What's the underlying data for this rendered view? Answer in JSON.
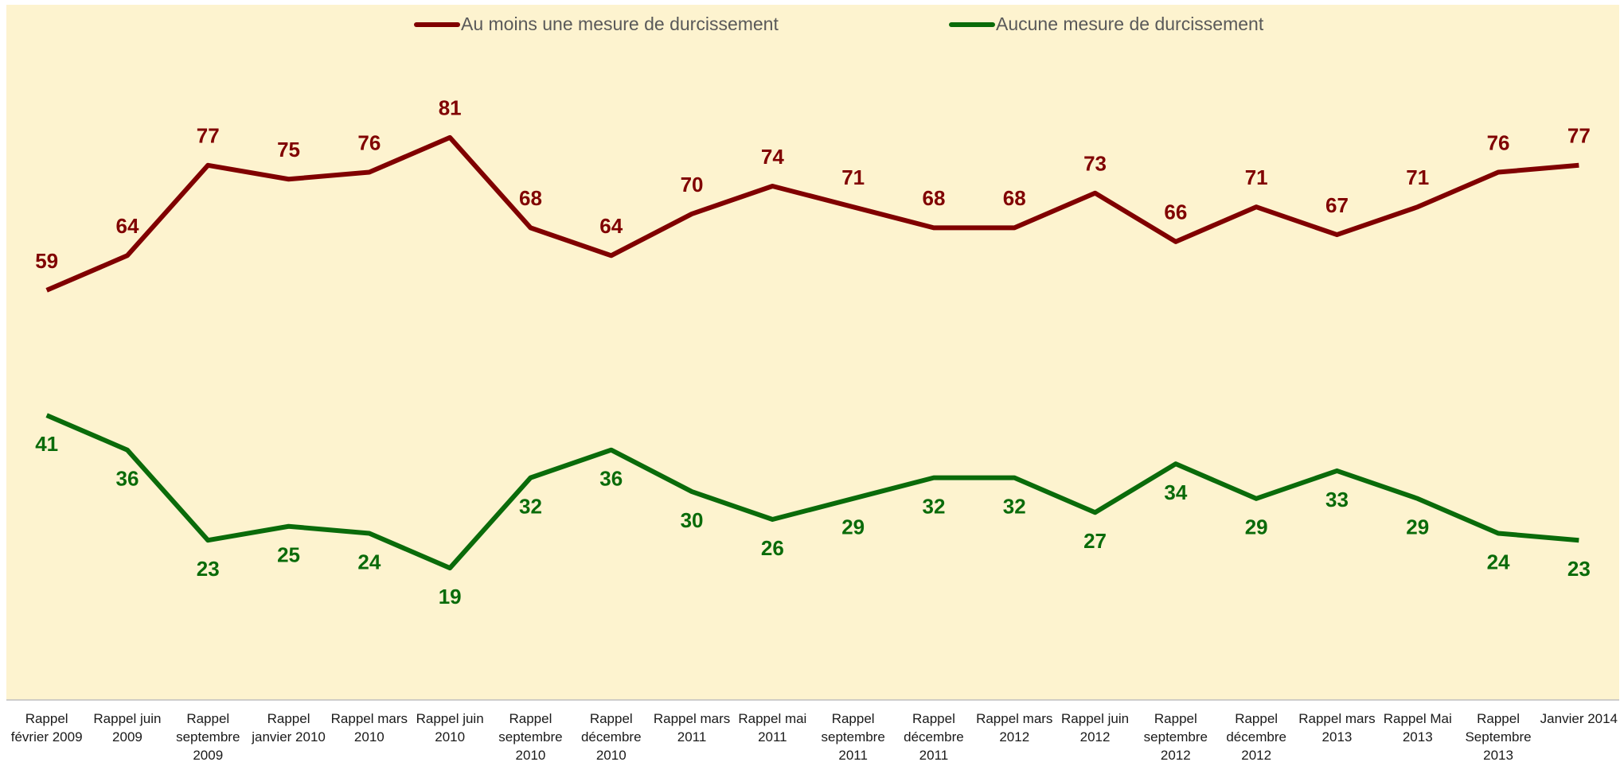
{
  "chart_data": {
    "type": "line",
    "categories": [
      "Rappel février 2009",
      "Rappel juin 2009",
      "Rappel septembre 2009",
      "Rappel janvier 2010",
      "Rappel mars 2010",
      "Rappel juin 2010",
      "Rappel septembre 2010",
      "Rappel décembre 2010",
      "Rappel mars 2011",
      "Rappel mai 2011",
      "Rappel septembre 2011",
      "Rappel décembre 2011",
      "Rappel mars 2012",
      "Rappel juin 2012",
      "Rappel septembre 2012",
      "Rappel décembre 2012",
      "Rappel mars 2013",
      "Rappel Mai 2013",
      "Rappel Septembre 2013",
      "Janvier 2014"
    ],
    "series": [
      {
        "name": "Au moins une mesure de durcissement",
        "color": "#800000",
        "values": [
          59,
          64,
          77,
          75,
          76,
          81,
          68,
          64,
          70,
          74,
          71,
          68,
          68,
          73,
          66,
          71,
          67,
          71,
          76,
          77
        ]
      },
      {
        "name": "Aucune mesure de durcissement",
        "color": "#0a6b0a",
        "values": [
          41,
          36,
          23,
          25,
          24,
          19,
          32,
          36,
          30,
          26,
          29,
          32,
          32,
          27,
          34,
          29,
          33,
          29,
          24,
          23
        ]
      }
    ],
    "ylim": [
      0,
      100
    ],
    "legend": "top"
  }
}
